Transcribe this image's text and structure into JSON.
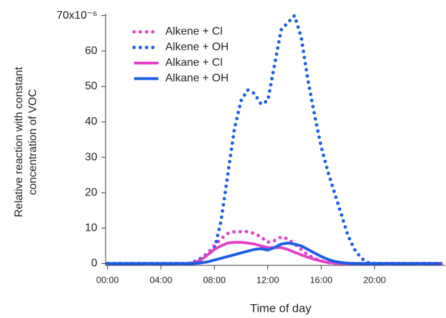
{
  "chart_data": {
    "type": "line",
    "xlabel": "Time of day",
    "ylabel": [
      "Relative reaction with constant",
      "concentration of VOC"
    ],
    "x": [
      0,
      5,
      5.5,
      6,
      6.5,
      7,
      7.5,
      8,
      8.5,
      9,
      9.5,
      10,
      10.5,
      11,
      11.5,
      12,
      12.5,
      13,
      13.5,
      14,
      14.5,
      15,
      15.5,
      16,
      16.5,
      17,
      17.5,
      18,
      18.5,
      19,
      19.5,
      20,
      20.5,
      21,
      25
    ],
    "series": [
      {
        "name": "Alkene + Cl",
        "color": "#e43fc9",
        "style": "dotted",
        "values": [
          0,
          0,
          0,
          0,
          0.5,
          1.5,
          3,
          5,
          7,
          8.5,
          9,
          9,
          9,
          8.5,
          7.5,
          6,
          6.5,
          7.5,
          7,
          5.5,
          4,
          2.5,
          1.5,
          0.8,
          0.3,
          0.1,
          0,
          0,
          0,
          0,
          0,
          0,
          0,
          0,
          0
        ]
      },
      {
        "name": "Alkene + OH",
        "color": "#1a5ee6",
        "style": "dotted",
        "values": [
          0,
          0,
          0,
          0,
          0.5,
          1.5,
          2.5,
          4,
          12,
          25,
          38,
          46,
          49,
          48,
          45,
          46,
          56,
          66,
          68,
          70,
          64,
          52,
          42,
          33,
          26,
          20,
          14,
          8,
          4,
          1.5,
          0.3,
          0,
          0,
          0,
          0
        ]
      },
      {
        "name": "Alkane + Cl",
        "color": "#e43fc9",
        "style": "solid",
        "values": [
          0,
          0,
          0,
          0,
          0.3,
          1,
          2.5,
          4,
          5,
          5.8,
          6,
          6,
          5.8,
          5.5,
          5,
          4.5,
          4.5,
          4.5,
          4,
          3.2,
          2.5,
          1.8,
          1.2,
          0.7,
          0.3,
          0.1,
          0,
          0,
          0,
          0,
          0,
          0,
          0,
          0,
          0
        ]
      },
      {
        "name": "Alkane + OH",
        "color": "#1a5ee6",
        "style": "solid",
        "values": [
          0,
          0,
          0,
          0,
          0,
          0.2,
          0.5,
          1,
          1.5,
          2,
          2.5,
          3,
          3.5,
          4,
          4.2,
          3.8,
          4.5,
          5.5,
          5.8,
          5.5,
          5,
          4,
          3,
          2,
          1.2,
          0.6,
          0.3,
          0.1,
          0,
          0,
          0,
          0,
          0,
          0,
          0
        ]
      }
    ],
    "xlim": [
      -0.15,
      25.3
    ],
    "ylim": [
      -0.5,
      70.5
    ],
    "xticks": [
      {
        "value": 0,
        "label": "00:00"
      },
      {
        "value": 4,
        "label": "04:00"
      },
      {
        "value": 8,
        "label": "08:00"
      },
      {
        "value": 12,
        "label": "12:00"
      },
      {
        "value": 16,
        "label": "16:00"
      },
      {
        "value": 20,
        "label": "20:00"
      }
    ],
    "yticks": [
      0,
      10,
      20,
      30,
      40,
      50,
      60,
      {
        "value": 70,
        "label": "70x10⁻⁶"
      }
    ],
    "legend": "top-left",
    "grid": false
  }
}
